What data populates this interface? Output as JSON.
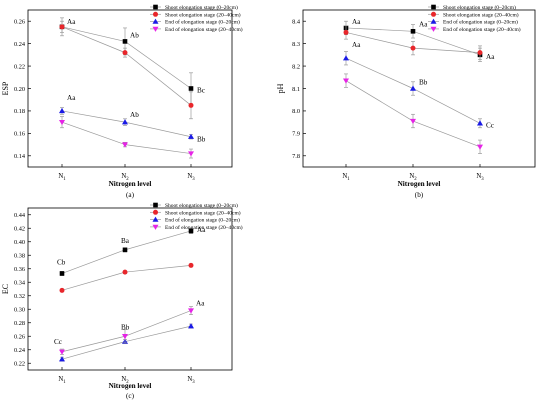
{
  "colors": {
    "series": [
      "#000000",
      "#e8262b",
      "#1a1ae6",
      "#e624e6"
    ],
    "line": "#9a9a9a"
  },
  "chart_data": [
    {
      "type": "line",
      "panel_label": "(a)",
      "ylabel": "ESP",
      "xlabel": "Nitrogen level",
      "categories": [
        "N1",
        "N2",
        "N3"
      ],
      "ylim": [
        0.13,
        0.27
      ],
      "yticks": [
        "0.14",
        "0.16",
        "0.18",
        "0.20",
        "0.22",
        "0.24",
        "0.26"
      ],
      "legend": "top-right",
      "series": [
        {
          "name": "Shoot elongation stage (0–20cm)",
          "marker": "square",
          "values": [
            0.255,
            0.242,
            0.2
          ],
          "errors": [
            0.008,
            0.012,
            0.014
          ],
          "labels": [
            "Aa",
            "Ab",
            "Bc"
          ]
        },
        {
          "name": "Shoot elongation stage (20–40cm)",
          "marker": "circle",
          "values": [
            0.255,
            0.232,
            0.185
          ],
          "errors": [
            0.005,
            0.004,
            0.012
          ],
          "labels": [
            "",
            "",
            ""
          ]
        },
        {
          "name": "End of elongation stage (0–20cm)",
          "marker": "triangle-up",
          "values": [
            0.18,
            0.17,
            0.157
          ],
          "errors": [
            0.003,
            0.003,
            0.002
          ],
          "labels": [
            "Aa",
            "Ab",
            "Bb"
          ]
        },
        {
          "name": "End of elongation stage (20–40cm)",
          "marker": "triangle-down",
          "values": [
            0.17,
            0.15,
            0.142
          ],
          "errors": [
            0.005,
            0.002,
            0.004
          ],
          "labels": [
            "",
            "",
            ""
          ]
        }
      ]
    },
    {
      "type": "line",
      "panel_label": "(b)",
      "ylabel": "pH",
      "xlabel": "Nitrogen level",
      "categories": [
        "N1",
        "N2",
        "N3"
      ],
      "ylim": [
        7.75,
        8.45
      ],
      "yticks": [
        "7.8",
        "7.9",
        "8.0",
        "8.1",
        "8.2",
        "8.3",
        "8.4"
      ],
      "legend": "top-right",
      "series": [
        {
          "name": "Shoot elongation stage (0–20cm)",
          "marker": "square",
          "values": [
            8.37,
            8.355,
            8.25
          ],
          "errors": [
            0.03,
            0.03,
            0.03
          ],
          "labels": [
            "Aa",
            "Aa",
            "Aa"
          ]
        },
        {
          "name": "Shoot elongation stage (20–40cm)",
          "marker": "circle",
          "values": [
            8.35,
            8.28,
            8.26
          ],
          "errors": [
            0.03,
            0.03,
            0.03
          ],
          "labels": [
            "",
            "",
            ""
          ]
        },
        {
          "name": "End of elongation stage (0–20cm)",
          "marker": "triangle-up",
          "values": [
            8.235,
            8.1,
            7.945
          ],
          "errors": [
            0.03,
            0.03,
            0.02
          ],
          "labels": [
            "Aa",
            "Bb",
            "Cc"
          ]
        },
        {
          "name": "End of elongation stage (20–40cm)",
          "marker": "triangle-down",
          "values": [
            8.135,
            7.955,
            7.84
          ],
          "errors": [
            0.03,
            0.03,
            0.03
          ],
          "labels": [
            "",
            "",
            ""
          ]
        }
      ]
    },
    {
      "type": "line",
      "panel_label": "(c)",
      "ylabel": "EC",
      "xlabel": "Nitrogen level",
      "categories": [
        "N1",
        "N2",
        "N3"
      ],
      "ylim": [
        0.21,
        0.45
      ],
      "yticks": [
        "0.22",
        "0.24",
        "0.26",
        "0.28",
        "0.30",
        "0.32",
        "0.34",
        "0.36",
        "0.38",
        "0.40",
        "0.42",
        "0.44"
      ],
      "legend": "top-right",
      "series": [
        {
          "name": "Shoot elongation stage (0–20cm)",
          "marker": "square",
          "values": [
            0.353,
            0.388,
            0.416
          ],
          "errors": [
            0.003,
            0.003,
            0.004
          ],
          "labels": [
            "Cb",
            "Ba",
            "Aa"
          ]
        },
        {
          "name": "Shoot elongation stage (20–40cm)",
          "marker": "circle",
          "values": [
            0.328,
            0.355,
            0.365
          ],
          "errors": [
            0.002,
            0.002,
            0.002
          ],
          "labels": [
            "",
            "",
            ""
          ]
        },
        {
          "name": "End of elongation stage (0–20cm)",
          "marker": "triangle-up",
          "values": [
            0.226,
            0.252,
            0.275
          ],
          "errors": [
            0.003,
            0.003,
            0.003
          ],
          "labels": [
            "",
            "",
            ""
          ]
        },
        {
          "name": "End of elongation stage (20–40cm)",
          "marker": "triangle-down",
          "values": [
            0.237,
            0.26,
            0.298
          ],
          "errors": [
            0.004,
            0.01,
            0.006
          ],
          "labels": [
            "Cc",
            "Bb",
            "Aa"
          ]
        }
      ]
    }
  ]
}
